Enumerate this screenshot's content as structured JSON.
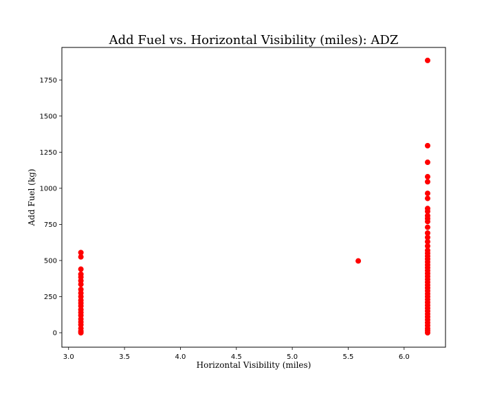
{
  "chart_data": {
    "type": "scatter",
    "title": "Add Fuel vs. Horizontal Visibility (miles): ADZ",
    "xlabel": "Horizontal Visibility (miles)",
    "ylabel": "Add Fuel (kg)",
    "xlim": [
      2.94,
      6.37
    ],
    "ylim": [
      -100,
      1975
    ],
    "x_ticks": [
      3.0,
      3.5,
      4.0,
      4.5,
      5.0,
      5.5,
      6.0
    ],
    "x_tick_labels": [
      "3.0",
      "3.5",
      "4.0",
      "4.5",
      "5.0",
      "5.5",
      "6.0"
    ],
    "y_ticks": [
      0,
      250,
      500,
      750,
      1000,
      1250,
      1500,
      1750
    ],
    "y_tick_labels": [
      "0",
      "250",
      "500",
      "750",
      "1000",
      "1250",
      "1500",
      "1750"
    ],
    "grid": false,
    "marker_color": "#ff0000",
    "series": [
      {
        "points": [
          [
            3.11,
            0
          ],
          [
            3.11,
            10
          ],
          [
            3.11,
            30
          ],
          [
            3.11,
            55
          ],
          [
            3.11,
            75
          ],
          [
            3.11,
            95
          ],
          [
            3.11,
            120
          ],
          [
            3.11,
            140
          ],
          [
            3.11,
            160
          ],
          [
            3.11,
            185
          ],
          [
            3.11,
            205
          ],
          [
            3.11,
            225
          ],
          [
            3.11,
            250
          ],
          [
            3.11,
            275
          ],
          [
            3.11,
            300
          ],
          [
            3.11,
            335
          ],
          [
            3.11,
            360
          ],
          [
            3.11,
            385
          ],
          [
            3.11,
            405
          ],
          [
            3.11,
            440
          ],
          [
            3.11,
            525
          ],
          [
            3.11,
            555
          ],
          [
            5.59,
            497
          ],
          [
            6.21,
            0
          ],
          [
            6.21,
            15
          ],
          [
            6.21,
            30
          ],
          [
            6.21,
            50
          ],
          [
            6.21,
            70
          ],
          [
            6.21,
            90
          ],
          [
            6.21,
            110
          ],
          [
            6.21,
            130
          ],
          [
            6.21,
            150
          ],
          [
            6.21,
            170
          ],
          [
            6.21,
            190
          ],
          [
            6.21,
            210
          ],
          [
            6.21,
            230
          ],
          [
            6.21,
            250
          ],
          [
            6.21,
            270
          ],
          [
            6.21,
            290
          ],
          [
            6.21,
            310
          ],
          [
            6.21,
            330
          ],
          [
            6.21,
            350
          ],
          [
            6.21,
            370
          ],
          [
            6.21,
            390
          ],
          [
            6.21,
            410
          ],
          [
            6.21,
            430
          ],
          [
            6.21,
            450
          ],
          [
            6.21,
            470
          ],
          [
            6.21,
            490
          ],
          [
            6.21,
            510
          ],
          [
            6.21,
            530
          ],
          [
            6.21,
            550
          ],
          [
            6.21,
            570
          ],
          [
            6.21,
            600
          ],
          [
            6.21,
            630
          ],
          [
            6.21,
            660
          ],
          [
            6.21,
            690
          ],
          [
            6.21,
            730
          ],
          [
            6.21,
            770
          ],
          [
            6.21,
            790
          ],
          [
            6.21,
            810
          ],
          [
            6.21,
            840
          ],
          [
            6.21,
            860
          ],
          [
            6.21,
            930
          ],
          [
            6.21,
            965
          ],
          [
            6.21,
            1045
          ],
          [
            6.21,
            1080
          ],
          [
            6.21,
            1180
          ],
          [
            6.21,
            1295
          ],
          [
            6.21,
            1885
          ]
        ]
      }
    ]
  }
}
